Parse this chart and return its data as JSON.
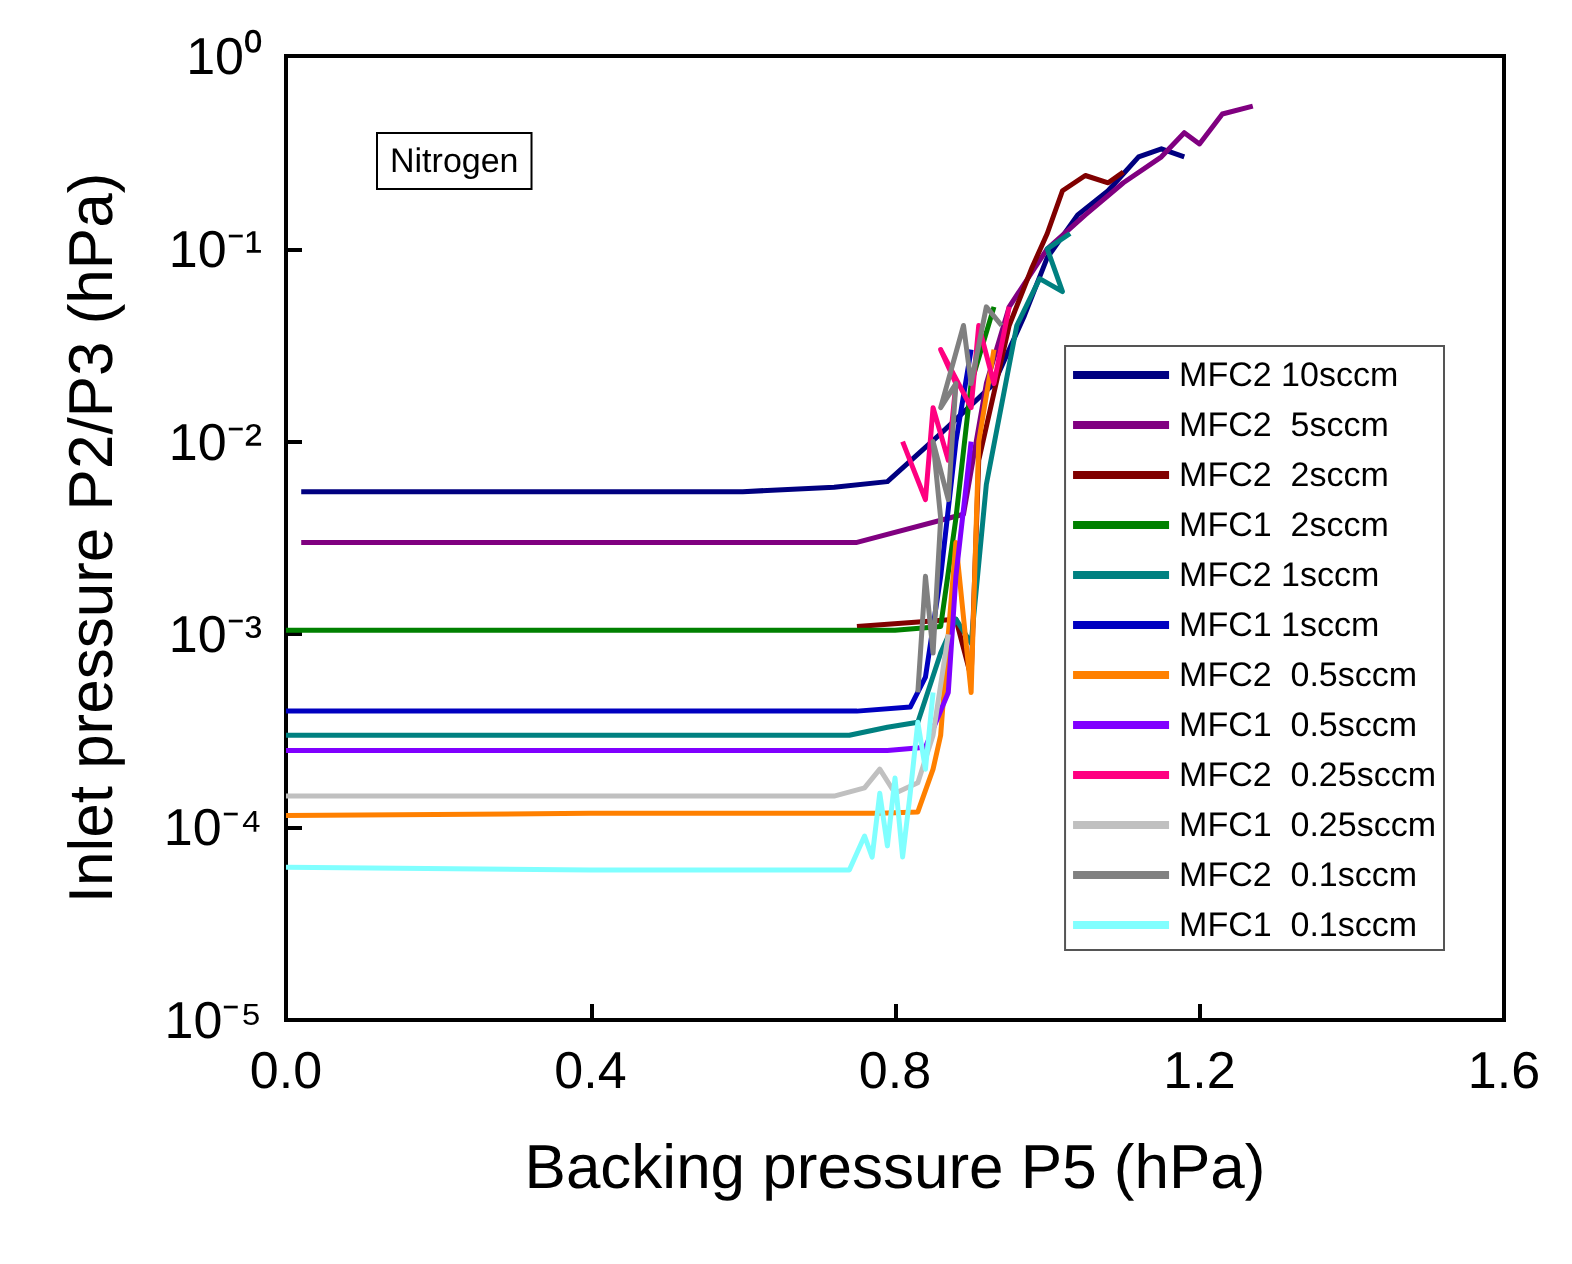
{
  "chart_data": {
    "type": "line",
    "xlabel": "Backing pressure P5 (hPa)",
    "ylabel": "Inlet pressure P2/P3 (hPa)",
    "annotations": [
      "Nitrogen"
    ],
    "log": "y",
    "grid": false,
    "legend": "right",
    "marker": "none",
    "line_style": "solid",
    "xlim": [
      0,
      1.6
    ],
    "xticks": [
      {
        "value": 0,
        "label": "0.0"
      },
      0.4,
      0.8,
      1.2,
      1.6
    ],
    "ylim": [
      1e-05,
      1
    ],
    "yticks": [
      {
        "value": 1e-05,
        "label": "10⁻⁵"
      },
      {
        "value": 0.0001,
        "label": "10⁻⁴"
      },
      {
        "value": 0.001,
        "label": "10⁻³"
      },
      {
        "value": 0.01,
        "label": "10⁻²"
      },
      {
        "value": 0.1,
        "label": "10⁻¹"
      },
      {
        "value": 1,
        "label": "10⁰"
      }
    ],
    "series": [
      {
        "name": "MFC2 10sccm",
        "color": "#000080",
        "x": [
          0.02,
          0.3,
          0.6,
          0.72,
          0.79,
          0.86,
          0.93,
          0.97,
          1.0,
          1.04,
          1.08,
          1.12,
          1.15,
          1.18
        ],
        "values": [
          0.0055,
          0.0055,
          0.0055,
          0.0058,
          0.0062,
          0.011,
          0.02,
          0.045,
          0.09,
          0.15,
          0.2,
          0.3,
          0.33,
          0.3
        ]
      },
      {
        "name": "MFC2  5sccm",
        "color": "#800080",
        "x": [
          0.02,
          0.4,
          0.75,
          0.89,
          0.92,
          0.95,
          1.0,
          1.05,
          1.1,
          1.15,
          1.18,
          1.2,
          1.23,
          1.27
        ],
        "values": [
          0.003,
          0.003,
          0.003,
          0.0042,
          0.02,
          0.05,
          0.1,
          0.15,
          0.22,
          0.3,
          0.4,
          0.35,
          0.5,
          0.55
        ]
      },
      {
        "name": "MFC2  2sccm",
        "color": "#800000",
        "x": [
          0.75,
          0.88,
          0.9,
          0.91,
          0.95,
          0.98,
          1.0,
          1.02,
          1.05,
          1.08,
          1.1
        ],
        "values": [
          0.0011,
          0.0012,
          0.0006,
          0.008,
          0.04,
          0.08,
          0.12,
          0.2,
          0.24,
          0.22,
          0.25
        ]
      },
      {
        "name": "MFC1  2sccm",
        "color": "#008000",
        "x": [
          0.0,
          0.4,
          0.8,
          0.86,
          0.88,
          0.9,
          0.93
        ],
        "values": [
          0.00105,
          0.00105,
          0.00105,
          0.0011,
          0.004,
          0.02,
          0.05
        ]
      },
      {
        "name": "MFC2 1sccm",
        "color": "#008080",
        "x": [
          0.0,
          0.4,
          0.74,
          0.79,
          0.83,
          0.86,
          0.88,
          0.9,
          0.92,
          0.96,
          0.99,
          1.02,
          1.0,
          1.03
        ],
        "values": [
          0.0003,
          0.0003,
          0.0003,
          0.00033,
          0.00035,
          0.0008,
          0.0012,
          0.0009,
          0.006,
          0.04,
          0.07,
          0.06,
          0.1,
          0.12
        ]
      },
      {
        "name": "MFC1 1sccm",
        "color": "#0000c0",
        "x": [
          0.0,
          0.4,
          0.75,
          0.82,
          0.84,
          0.86,
          0.88,
          0.9
        ],
        "values": [
          0.0004,
          0.0004,
          0.0004,
          0.00042,
          0.0006,
          0.002,
          0.01,
          0.03
        ]
      },
      {
        "name": "MFC2  0.5sccm",
        "color": "#ff8000",
        "x": [
          0.0,
          0.4,
          0.78,
          0.83,
          0.85,
          0.86,
          0.87,
          0.88,
          0.9,
          0.91,
          0.93
        ],
        "values": [
          0.000115,
          0.000118,
          0.000118,
          0.00012,
          0.0002,
          0.0003,
          0.001,
          0.003,
          0.0005,
          0.01,
          0.03
        ]
      },
      {
        "name": "MFC1  0.5sccm",
        "color": "#8000ff",
        "x": [
          0.0,
          0.4,
          0.79,
          0.84,
          0.87,
          0.88,
          0.9
        ],
        "values": [
          0.00025,
          0.00025,
          0.00025,
          0.00026,
          0.0005,
          0.002,
          0.01
        ]
      },
      {
        "name": "MFC2  0.25sccm",
        "color": "#ff0080",
        "x": [
          0.81,
          0.84,
          0.85,
          0.87,
          0.88,
          0.86,
          0.9,
          0.91,
          0.93,
          0.95
        ],
        "values": [
          0.01,
          0.005,
          0.015,
          0.008,
          0.02,
          0.03,
          0.015,
          0.04,
          0.02,
          0.05
        ]
      },
      {
        "name": "MFC1  0.25sccm",
        "color": "#c0c0c0",
        "x": [
          0.0,
          0.4,
          0.72,
          0.76,
          0.78,
          0.8,
          0.83,
          0.85,
          0.87
        ],
        "values": [
          0.000145,
          0.000145,
          0.000145,
          0.00016,
          0.0002,
          0.00015,
          0.00017,
          0.0003,
          0.001
        ]
      },
      {
        "name": "MFC2  0.1sccm",
        "color": "#808080",
        "x": [
          0.83,
          0.84,
          0.85,
          0.86,
          0.85,
          0.87,
          0.88,
          0.86,
          0.89,
          0.9,
          0.92,
          0.94
        ],
        "values": [
          0.0005,
          0.002,
          0.0008,
          0.004,
          0.01,
          0.005,
          0.02,
          0.015,
          0.04,
          0.02,
          0.05,
          0.04
        ]
      },
      {
        "name": "MFC1  0.1sccm",
        "color": "#80ffff",
        "x": [
          0.0,
          0.4,
          0.74,
          0.76,
          0.77,
          0.78,
          0.79,
          0.8,
          0.81,
          0.82,
          0.83,
          0.84,
          0.85
        ],
        "values": [
          6.2e-05,
          6e-05,
          6e-05,
          9e-05,
          7e-05,
          0.00015,
          8e-05,
          0.00018,
          7e-05,
          0.00015,
          0.00035,
          0.0002,
          0.0005
        ]
      }
    ]
  }
}
